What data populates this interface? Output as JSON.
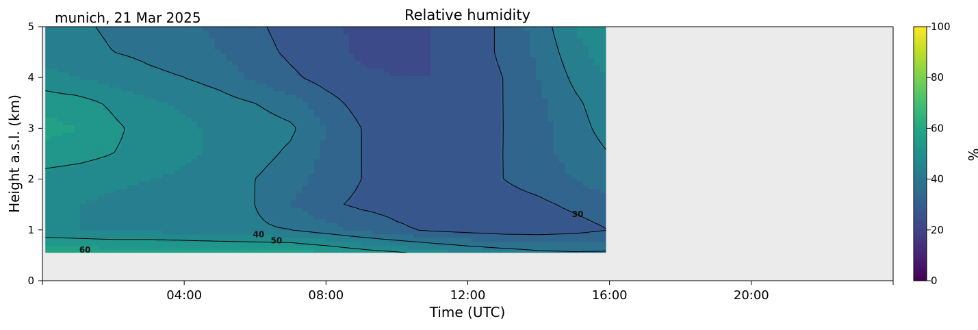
{
  "chart_data": {
    "type": "heatmap",
    "title": "Relative humidity",
    "subtitle": "munich, 21 Mar 2025",
    "xlabel": "Time (UTC)",
    "ylabel": "Height a.s.l. (km)",
    "colorbar_label": "%",
    "colormap": "viridis",
    "colorbar_ticks": [
      0,
      20,
      40,
      60,
      80,
      100
    ],
    "xlim": [
      0,
      24
    ],
    "x_ticks": [
      4,
      8,
      12,
      16,
      20
    ],
    "x_ticklabels": [
      "04:00",
      "08:00",
      "12:00",
      "16:00",
      "20:00"
    ],
    "ylim": [
      0,
      5
    ],
    "y_ticks": [
      0,
      1,
      2,
      3,
      4,
      5
    ],
    "y_ticklabels": [
      "0",
      "1",
      "2",
      "3",
      "4",
      "5"
    ],
    "no_data_color": "#ebebeb",
    "data_extent": {
      "time_h": [
        0.08,
        15.9
      ],
      "height_km": [
        0.55,
        5.0
      ]
    },
    "contour_levels": [
      30,
      40,
      50,
      60
    ],
    "contour_labels": [
      {
        "text": "60",
        "time_h": 1.2,
        "height_km": 0.6
      },
      {
        "text": "40",
        "time_h": 6.1,
        "height_km": 0.9
      },
      {
        "text": "50",
        "time_h": 6.6,
        "height_km": 0.78
      },
      {
        "text": "30",
        "time_h": 15.1,
        "height_km": 1.3
      }
    ],
    "rh_field": {
      "time_h": [
        0,
        1,
        2,
        3,
        4,
        5,
        6,
        7,
        8,
        9,
        10,
        11,
        12,
        13,
        14,
        15,
        16
      ],
      "height_km": [
        0.5,
        1,
        1.5,
        2,
        2.5,
        3,
        3.5,
        4,
        4.5,
        5
      ],
      "rh_rows": [
        [
          60,
          60,
          60,
          60,
          60,
          60,
          60,
          60,
          58,
          55,
          53,
          50,
          47,
          45,
          43,
          42,
          42
        ],
        [
          46,
          45,
          44,
          44,
          43,
          42,
          41,
          40,
          37,
          34,
          31,
          29,
          28,
          27,
          27,
          28,
          30
        ],
        [
          45,
          45,
          44,
          43,
          43,
          42,
          40,
          35,
          31,
          29,
          28,
          28,
          28,
          28,
          29,
          31,
          33
        ],
        [
          48,
          47,
          46,
          45,
          44,
          43,
          40,
          37,
          33,
          30,
          28,
          28,
          28,
          30,
          32,
          35,
          38
        ],
        [
          53,
          52,
          50,
          48,
          46,
          44,
          42,
          39,
          34,
          30,
          28,
          28,
          28,
          30,
          33,
          37,
          40
        ],
        [
          57,
          55,
          51,
          48,
          46,
          44,
          43,
          41,
          35,
          30,
          27,
          27,
          27,
          30,
          33,
          38,
          42
        ],
        [
          53,
          52,
          49,
          46,
          44,
          42,
          40,
          37,
          32,
          28,
          26,
          26,
          27,
          30,
          34,
          39,
          43
        ],
        [
          47,
          45,
          43,
          41,
          40,
          38,
          34,
          31,
          28,
          26,
          25,
          25,
          27,
          30,
          35,
          41,
          45
        ],
        [
          43,
          42,
          40,
          39,
          38,
          35,
          32,
          29,
          27,
          24,
          24,
          25,
          27,
          31,
          36,
          43,
          48
        ],
        [
          42,
          41,
          39,
          38,
          36,
          34,
          31,
          28,
          26,
          24,
          24,
          25,
          27,
          31,
          37,
          45,
          50
        ]
      ]
    }
  }
}
